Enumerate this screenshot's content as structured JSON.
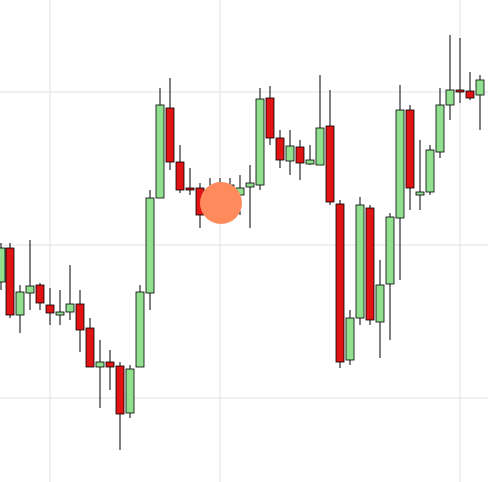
{
  "chart_data": {
    "type": "candlestick",
    "x": [
      1,
      10,
      20,
      30,
      40,
      50,
      60,
      70,
      80,
      90,
      100,
      110,
      120,
      130,
      140,
      150,
      160,
      170,
      180,
      190,
      200,
      210,
      220,
      230,
      240,
      250,
      260,
      270,
      280,
      290,
      300,
      310,
      320,
      330,
      340,
      350,
      360,
      370,
      380,
      390,
      400,
      410,
      420,
      430,
      440,
      450,
      460,
      470,
      480
    ],
    "open": [
      200,
      234,
      167,
      189,
      197,
      177,
      167,
      170,
      178,
      154,
      115,
      120,
      116,
      69,
      115,
      189,
      284,
      374,
      320,
      294,
      294,
      292,
      267,
      287,
      287,
      295,
      297,
      384,
      344,
      321,
      335,
      318,
      317,
      356,
      278,
      122,
      164,
      274,
      160,
      198,
      264,
      372,
      287,
      290,
      330,
      377,
      392,
      391,
      387
    ],
    "high": [
      239,
      239,
      197,
      242,
      199,
      194,
      192,
      217,
      192,
      164,
      142,
      132,
      120,
      117,
      197,
      292,
      394,
      404,
      337,
      314,
      299,
      304,
      304,
      304,
      307,
      317,
      394,
      396,
      352,
      352,
      342,
      337,
      407,
      392,
      282,
      172,
      285,
      277,
      222,
      269,
      397,
      377,
      342,
      337,
      394,
      447,
      444,
      410,
      407
    ],
    "low": [
      192,
      164,
      149,
      172,
      172,
      157,
      157,
      162,
      130,
      115,
      74,
      92,
      32,
      64,
      115,
      172,
      284,
      312,
      289,
      287,
      254,
      267,
      260,
      282,
      267,
      254,
      292,
      337,
      314,
      307,
      302,
      317,
      317,
      277,
      114,
      117,
      157,
      157,
      124,
      142,
      202,
      272,
      272,
      287,
      324,
      362,
      379,
      382,
      352
    ],
    "close": [
      234,
      167,
      190,
      196,
      179,
      169,
      170,
      178,
      152,
      115,
      120,
      115,
      68,
      113,
      190,
      284,
      377,
      320,
      292,
      292,
      267,
      290,
      297,
      297,
      294,
      299,
      383,
      344,
      322,
      336,
      319,
      322,
      354,
      280,
      120,
      164,
      277,
      162,
      197,
      265,
      372,
      294,
      290,
      332,
      377,
      392,
      390,
      384,
      402
    ],
    "up_color": "#90e090",
    "down_color": "#e01414",
    "xlim": [
      0,
      488
    ],
    "ylim": [
      0,
      482
    ],
    "xticks": [
      50,
      220,
      460
    ],
    "yticks": [
      84,
      237,
      390
    ],
    "grid": true,
    "marker": {
      "x": 221,
      "y": 279,
      "color": "#ff8a5c"
    }
  }
}
